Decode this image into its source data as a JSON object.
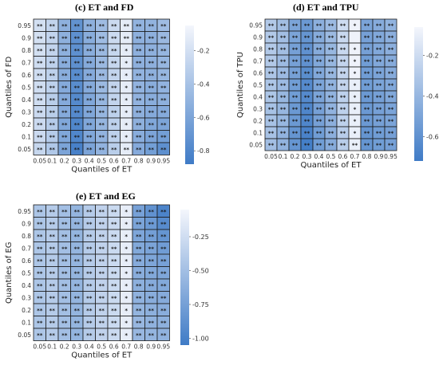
{
  "chart_data": [
    {
      "type": "heatmap",
      "title": "(c) ET and FD",
      "xlabel": "Quantiles of ET",
      "ylabel": "Quantiles of FD",
      "x_ticks": [
        "0.05",
        "0.1",
        "0.2",
        "0.3",
        "0.4",
        "0.5",
        "0.6",
        "0.7",
        "0.8",
        "0.9",
        "0.95"
      ],
      "y_ticks": [
        "0.95",
        "0.9",
        "0.8",
        "0.7",
        "0.6",
        "0.5",
        "0.4",
        "0.3",
        "0.2",
        "0.1",
        "0.05"
      ],
      "colorbar_ticks": [
        "-0.2",
        "-0.4",
        "-0.6",
        "-0.8"
      ],
      "colorbar_values": [
        -0.2,
        -0.4,
        -0.6,
        -0.8
      ],
      "colorbar_range": [
        -0.88,
        -0.05
      ],
      "color_low": "#3f7bc6",
      "color_high": "#f4f6fc",
      "values": [
        [
          -0.2,
          -0.28,
          -0.52,
          -0.72,
          -0.52,
          -0.44,
          -0.24,
          -0.12,
          -0.5,
          -0.5,
          -0.44
        ],
        [
          -0.2,
          -0.28,
          -0.52,
          -0.74,
          -0.54,
          -0.44,
          -0.24,
          -0.12,
          -0.52,
          -0.52,
          -0.46
        ],
        [
          -0.2,
          -0.28,
          -0.52,
          -0.74,
          -0.54,
          -0.46,
          -0.26,
          -0.12,
          -0.52,
          -0.52,
          -0.48
        ],
        [
          -0.22,
          -0.3,
          -0.54,
          -0.74,
          -0.56,
          -0.46,
          -0.26,
          -0.12,
          -0.52,
          -0.52,
          -0.48
        ],
        [
          -0.22,
          -0.3,
          -0.54,
          -0.76,
          -0.56,
          -0.46,
          -0.28,
          -0.12,
          -0.5,
          -0.52,
          -0.48
        ],
        [
          -0.22,
          -0.3,
          -0.56,
          -0.76,
          -0.56,
          -0.46,
          -0.28,
          -0.12,
          -0.5,
          -0.54,
          -0.5
        ],
        [
          -0.22,
          -0.32,
          -0.56,
          -0.78,
          -0.58,
          -0.48,
          -0.28,
          -0.12,
          -0.5,
          -0.54,
          -0.52
        ],
        [
          -0.24,
          -0.32,
          -0.56,
          -0.78,
          -0.58,
          -0.48,
          -0.3,
          -0.12,
          -0.52,
          -0.56,
          -0.56
        ],
        [
          -0.24,
          -0.34,
          -0.58,
          -0.8,
          -0.58,
          -0.48,
          -0.3,
          -0.12,
          -0.52,
          -0.58,
          -0.6
        ],
        [
          -0.24,
          -0.34,
          -0.58,
          -0.8,
          -0.58,
          -0.5,
          -0.3,
          -0.12,
          -0.54,
          -0.6,
          -0.64
        ],
        [
          -0.26,
          -0.36,
          -0.6,
          -0.84,
          -0.6,
          -0.5,
          -0.32,
          -0.12,
          -0.56,
          -0.64,
          -0.74
        ]
      ],
      "stars": [
        [
          "**",
          "**",
          "**",
          "**",
          "**",
          "**",
          "**",
          "**",
          "**",
          "**",
          "**"
        ],
        [
          "**",
          "**",
          "**",
          "**",
          "**",
          "**",
          "**",
          "**",
          "**",
          "**",
          "**"
        ],
        [
          "**",
          "**",
          "**",
          "**",
          "**",
          "**",
          "**",
          "*",
          "**",
          "**",
          "**"
        ],
        [
          "**",
          "**",
          "**",
          "**",
          "**",
          "**",
          "**",
          "*",
          "**",
          "**",
          "**"
        ],
        [
          "**",
          "**",
          "**",
          "**",
          "**",
          "**",
          "**",
          "*",
          "**",
          "**",
          "**"
        ],
        [
          "**",
          "**",
          "**",
          "**",
          "**",
          "**",
          "**",
          "*",
          "**",
          "**",
          "**"
        ],
        [
          "**",
          "**",
          "**",
          "**",
          "**",
          "**",
          "**",
          "*",
          "**",
          "**",
          "**"
        ],
        [
          "**",
          "**",
          "**",
          "**",
          "**",
          "**",
          "**",
          "*",
          "**",
          "**",
          "**"
        ],
        [
          "**",
          "**",
          "**",
          "**",
          "**",
          "**",
          "**",
          "*",
          "**",
          "**",
          "**"
        ],
        [
          "**",
          "**",
          "**",
          "**",
          "**",
          "**",
          "**",
          "*",
          "**",
          "**",
          "**"
        ],
        [
          "**",
          "**",
          "**",
          "**",
          "**",
          "**",
          "**",
          "**",
          "**",
          "**",
          "**"
        ]
      ]
    },
    {
      "type": "heatmap",
      "title": "(d) ET and TPU",
      "xlabel": "Quantiles of ET",
      "ylabel": "Quantiles of TPU",
      "x_ticks": [
        "0.05",
        "0.1",
        "0.2",
        "0.3",
        "0.4",
        "0.5",
        "0.6",
        "0.7",
        "0.8",
        "0.9",
        "0.95"
      ],
      "y_ticks": [
        "0.95",
        "0.9",
        "0.8",
        "0.7",
        "0.6",
        "0.5",
        "0.4",
        "0.3",
        "0.2",
        "0.1",
        "0.05"
      ],
      "colorbar_ticks": [
        "-0.2",
        "-0.4",
        "-0.6"
      ],
      "colorbar_values": [
        -0.2,
        -0.4,
        -0.6
      ],
      "colorbar_range": [
        -0.72,
        -0.06
      ],
      "color_low": "#3f7bc6",
      "color_high": "#f4f6fc",
      "values": [
        [
          -0.3,
          -0.36,
          -0.5,
          -0.56,
          -0.44,
          -0.38,
          -0.2,
          -0.08,
          -0.5,
          -0.46,
          -0.42
        ],
        [
          -0.3,
          -0.36,
          -0.5,
          -0.58,
          -0.46,
          -0.38,
          -0.22,
          -0.08,
          -0.52,
          -0.48,
          -0.44
        ],
        [
          -0.3,
          -0.36,
          -0.52,
          -0.6,
          -0.46,
          -0.4,
          -0.22,
          -0.08,
          -0.52,
          -0.48,
          -0.44
        ],
        [
          -0.3,
          -0.38,
          -0.52,
          -0.6,
          -0.48,
          -0.4,
          -0.24,
          -0.08,
          -0.54,
          -0.48,
          -0.46
        ],
        [
          -0.32,
          -0.38,
          -0.52,
          -0.62,
          -0.48,
          -0.4,
          -0.24,
          -0.08,
          -0.54,
          -0.5,
          -0.46
        ],
        [
          -0.32,
          -0.38,
          -0.54,
          -0.64,
          -0.5,
          -0.42,
          -0.24,
          -0.1,
          -0.54,
          -0.5,
          -0.48
        ],
        [
          -0.32,
          -0.4,
          -0.54,
          -0.64,
          -0.5,
          -0.42,
          -0.26,
          -0.1,
          -0.56,
          -0.52,
          -0.48
        ],
        [
          -0.34,
          -0.4,
          -0.56,
          -0.66,
          -0.52,
          -0.42,
          -0.26,
          -0.1,
          -0.56,
          -0.52,
          -0.5
        ],
        [
          -0.34,
          -0.4,
          -0.56,
          -0.66,
          -0.52,
          -0.44,
          -0.26,
          -0.1,
          -0.56,
          -0.52,
          -0.5
        ],
        [
          -0.34,
          -0.42,
          -0.58,
          -0.68,
          -0.54,
          -0.44,
          -0.28,
          -0.1,
          -0.58,
          -0.54,
          -0.52
        ],
        [
          -0.36,
          -0.42,
          -0.58,
          -0.7,
          -0.54,
          -0.46,
          -0.28,
          -0.1,
          -0.58,
          -0.54,
          -0.52
        ]
      ],
      "stars": [
        [
          "**",
          "**",
          "**",
          "**",
          "**",
          "**",
          "**",
          "*",
          "**",
          "**",
          "**"
        ],
        [
          "**",
          "**",
          "**",
          "**",
          "**",
          "**",
          "**",
          "",
          "**",
          "**",
          "**"
        ],
        [
          "**",
          "**",
          "**",
          "**",
          "**",
          "**",
          "**",
          "*",
          "**",
          "**",
          "**"
        ],
        [
          "**",
          "**",
          "**",
          "**",
          "**",
          "**",
          "**",
          "*",
          "**",
          "**",
          "**"
        ],
        [
          "**",
          "**",
          "**",
          "**",
          "**",
          "**",
          "**",
          "*",
          "**",
          "**",
          "**"
        ],
        [
          "**",
          "**",
          "**",
          "**",
          "**",
          "**",
          "**",
          "*",
          "**",
          "**",
          "**"
        ],
        [
          "**",
          "**",
          "**",
          "**",
          "**",
          "**",
          "**",
          "*",
          "**",
          "**",
          "**"
        ],
        [
          "**",
          "**",
          "**",
          "**",
          "**",
          "**",
          "**",
          "*",
          "**",
          "**",
          "**"
        ],
        [
          "**",
          "**",
          "**",
          "**",
          "**",
          "**",
          "**",
          "*",
          "**",
          "**",
          "**"
        ],
        [
          "**",
          "**",
          "**",
          "**",
          "**",
          "**",
          "**",
          "*",
          "**",
          "**",
          "**"
        ],
        [
          "**",
          "**",
          "**",
          "**",
          "**",
          "**",
          "**",
          "**",
          "**",
          "**",
          "**"
        ]
      ]
    },
    {
      "type": "heatmap",
      "title": "(e) ET and EG",
      "xlabel": "Quantiles of ET",
      "ylabel": "Quantiles of EG",
      "x_ticks": [
        "0.05",
        "0.1",
        "0.2",
        "0.3",
        "0.4",
        "0.5",
        "0.6",
        "0.7",
        "0.8",
        "0.9",
        "0.95"
      ],
      "y_ticks": [
        "0.95",
        "0.9",
        "0.8",
        "0.7",
        "0.6",
        "0.5",
        "0.4",
        "0.3",
        "0.2",
        "0.1",
        "0.05"
      ],
      "colorbar_ticks": [
        "-0.25",
        "-0.50",
        "-0.75",
        "-1.00"
      ],
      "colorbar_values": [
        -0.25,
        -0.5,
        -0.75,
        -1.0
      ],
      "colorbar_range": [
        -1.05,
        -0.05
      ],
      "color_low": "#3f7bc6",
      "color_high": "#f4f6fc",
      "values": [
        [
          -0.45,
          -0.4,
          -0.5,
          -0.58,
          -0.4,
          -0.34,
          -0.28,
          -0.12,
          -0.74,
          -0.86,
          -0.98
        ],
        [
          -0.45,
          -0.4,
          -0.5,
          -0.58,
          -0.4,
          -0.34,
          -0.28,
          -0.12,
          -0.72,
          -0.8,
          -0.92
        ],
        [
          -0.44,
          -0.4,
          -0.5,
          -0.58,
          -0.4,
          -0.34,
          -0.28,
          -0.12,
          -0.7,
          -0.76,
          -0.84
        ],
        [
          -0.44,
          -0.4,
          -0.5,
          -0.58,
          -0.4,
          -0.34,
          -0.28,
          -0.12,
          -0.68,
          -0.72,
          -0.78
        ],
        [
          -0.44,
          -0.4,
          -0.5,
          -0.58,
          -0.4,
          -0.34,
          -0.28,
          -0.12,
          -0.66,
          -0.7,
          -0.74
        ],
        [
          -0.44,
          -0.4,
          -0.5,
          -0.58,
          -0.4,
          -0.34,
          -0.28,
          -0.12,
          -0.64,
          -0.68,
          -0.7
        ],
        [
          -0.44,
          -0.4,
          -0.5,
          -0.58,
          -0.4,
          -0.34,
          -0.28,
          -0.12,
          -0.62,
          -0.66,
          -0.68
        ],
        [
          -0.44,
          -0.4,
          -0.5,
          -0.58,
          -0.4,
          -0.34,
          -0.28,
          -0.12,
          -0.6,
          -0.64,
          -0.66
        ],
        [
          -0.44,
          -0.4,
          -0.5,
          -0.58,
          -0.4,
          -0.34,
          -0.28,
          -0.12,
          -0.58,
          -0.62,
          -0.64
        ],
        [
          -0.44,
          -0.4,
          -0.5,
          -0.58,
          -0.4,
          -0.34,
          -0.28,
          -0.12,
          -0.56,
          -0.6,
          -0.62
        ],
        [
          -0.44,
          -0.4,
          -0.5,
          -0.58,
          -0.4,
          -0.34,
          -0.28,
          -0.12,
          -0.56,
          -0.58,
          -0.6
        ]
      ],
      "stars": [
        [
          "**",
          "**",
          "**",
          "**",
          "**",
          "**",
          "**",
          "*",
          "**",
          "**",
          "**"
        ],
        [
          "**",
          "**",
          "**",
          "**",
          "**",
          "**",
          "**",
          "*",
          "**",
          "**",
          "**"
        ],
        [
          "**",
          "**",
          "**",
          "**",
          "**",
          "**",
          "**",
          "*",
          "**",
          "**",
          "**"
        ],
        [
          "**",
          "**",
          "**",
          "**",
          "**",
          "**",
          "**",
          "*",
          "**",
          "**",
          "**"
        ],
        [
          "**",
          "**",
          "**",
          "**",
          "**",
          "**",
          "**",
          "*",
          "**",
          "**",
          "**"
        ],
        [
          "**",
          "**",
          "**",
          "**",
          "**",
          "**",
          "**",
          "*",
          "**",
          "**",
          "**"
        ],
        [
          "**",
          "**",
          "**",
          "**",
          "**",
          "**",
          "**",
          "*",
          "**",
          "**",
          "**"
        ],
        [
          "**",
          "**",
          "**",
          "**",
          "**",
          "**",
          "**",
          "*",
          "**",
          "**",
          "**"
        ],
        [
          "**",
          "**",
          "**",
          "**",
          "**",
          "**",
          "**",
          "*",
          "**",
          "**",
          "**"
        ],
        [
          "**",
          "**",
          "**",
          "**",
          "**",
          "**",
          "**",
          "*",
          "**",
          "**",
          "**"
        ],
        [
          "**",
          "**",
          "**",
          "**",
          "**",
          "**",
          "**",
          "*",
          "**",
          "**",
          "**"
        ]
      ]
    }
  ]
}
